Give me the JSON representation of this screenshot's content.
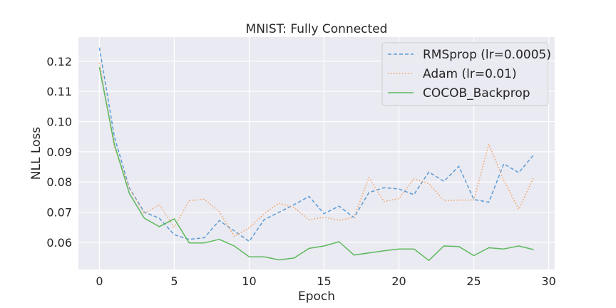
{
  "chart_data": {
    "type": "line",
    "title": "MNIST: Fully Connected",
    "xlabel": "Epoch",
    "ylabel": "NLL Loss",
    "xlim": [
      -1.4,
      30.4
    ],
    "ylim": [
      0.051,
      0.128
    ],
    "xticks": [
      0,
      5,
      10,
      15,
      20,
      25,
      30
    ],
    "yticks": [
      0.06,
      0.07,
      0.08,
      0.09,
      0.1,
      0.11,
      0.12
    ],
    "ytick_labels": [
      "0.06",
      "0.07",
      "0.08",
      "0.09",
      "0.10",
      "0.11",
      "0.12"
    ],
    "grid": true,
    "legend_position": "top-right",
    "x": [
      0,
      1,
      2,
      3,
      4,
      5,
      6,
      7,
      8,
      9,
      10,
      11,
      12,
      13,
      14,
      15,
      16,
      17,
      18,
      19,
      20,
      21,
      22,
      23,
      24,
      25,
      26,
      27,
      28,
      29
    ],
    "series": [
      {
        "name": "RMSprop (lr=0.0005)",
        "color": "#5b9bd5",
        "dash": "dashed",
        "values": [
          0.1245,
          0.095,
          0.078,
          0.07,
          0.068,
          0.0625,
          0.061,
          0.0615,
          0.0672,
          0.0638,
          0.0603,
          0.0675,
          0.07,
          0.0725,
          0.0752,
          0.0695,
          0.072,
          0.0682,
          0.0765,
          0.0781,
          0.0777,
          0.0758,
          0.0833,
          0.0802,
          0.0852,
          0.0742,
          0.0733,
          0.086,
          0.0831,
          0.089
        ]
      },
      {
        "name": "Adam (lr=0.01)",
        "color": "#f4a261",
        "dash": "dotted",
        "values": [
          0.1195,
          0.0915,
          0.078,
          0.0695,
          0.0725,
          0.065,
          0.0738,
          0.0743,
          0.0702,
          0.062,
          0.0648,
          0.0695,
          0.073,
          0.0715,
          0.0675,
          0.0683,
          0.0673,
          0.0683,
          0.0815,
          0.0735,
          0.0745,
          0.081,
          0.0795,
          0.0738,
          0.074,
          0.074,
          0.0925,
          0.0805,
          0.071,
          0.0815
        ]
      },
      {
        "name": "COCOB_Backprop",
        "color": "#5cb85c",
        "dash": "solid",
        "values": [
          0.118,
          0.0925,
          0.0762,
          0.068,
          0.0652,
          0.0678,
          0.0598,
          0.0598,
          0.061,
          0.0588,
          0.0552,
          0.0552,
          0.0542,
          0.0548,
          0.058,
          0.0588,
          0.0602,
          0.0558,
          0.0565,
          0.0572,
          0.0578,
          0.0578,
          0.054,
          0.0588,
          0.0586,
          0.0556,
          0.0582,
          0.0578,
          0.0588,
          0.0576
        ]
      }
    ]
  }
}
